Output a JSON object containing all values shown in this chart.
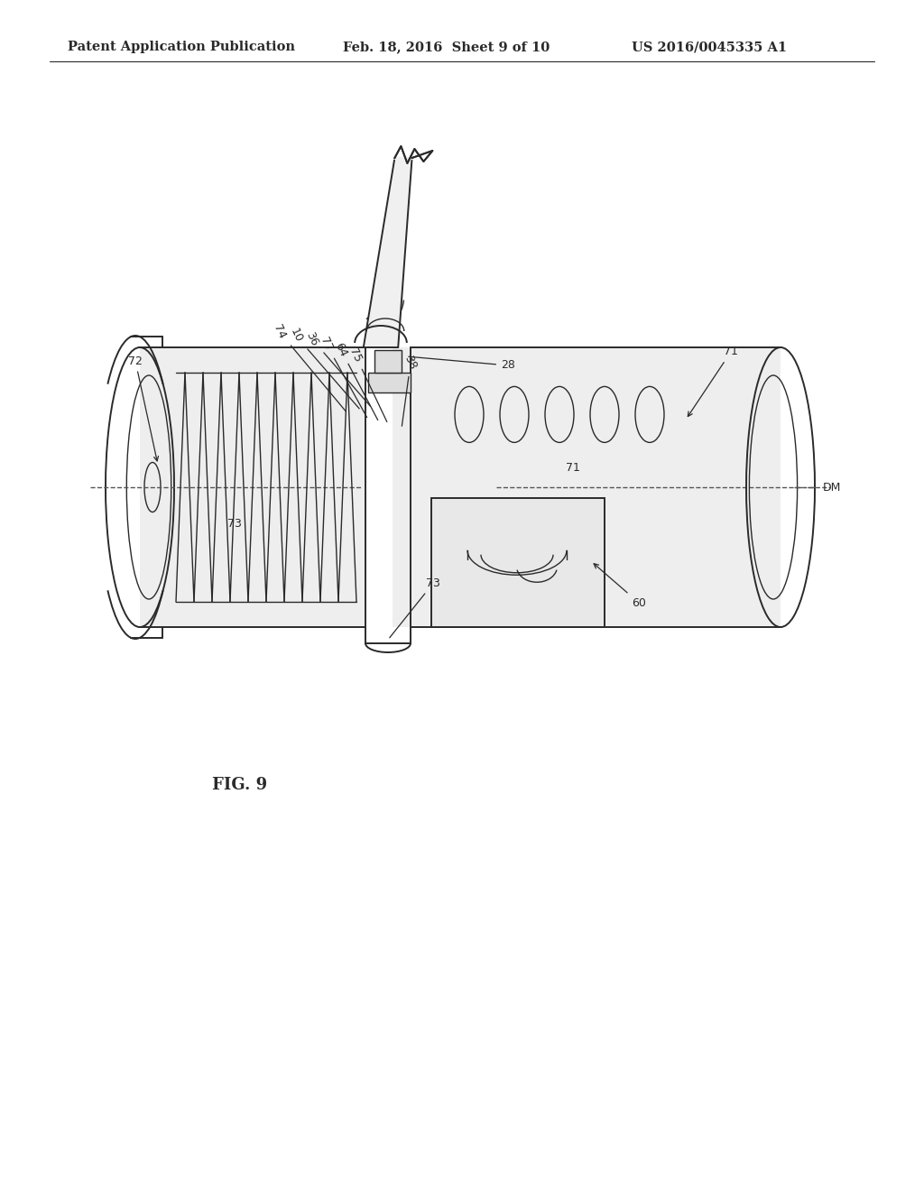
{
  "background_color": "#ffffff",
  "header_left": "Patent Application Publication",
  "header_mid": "Feb. 18, 2016  Sheet 9 of 10",
  "header_right": "US 2016/0045335 A1",
  "figure_label": "FIG. 9",
  "line_color": "#2a2a2a",
  "header_fontsize": 10.5,
  "label_fontsize": 9,
  "fig_label_fontsize": 13,
  "page_width": 10.24,
  "page_height": 13.2
}
